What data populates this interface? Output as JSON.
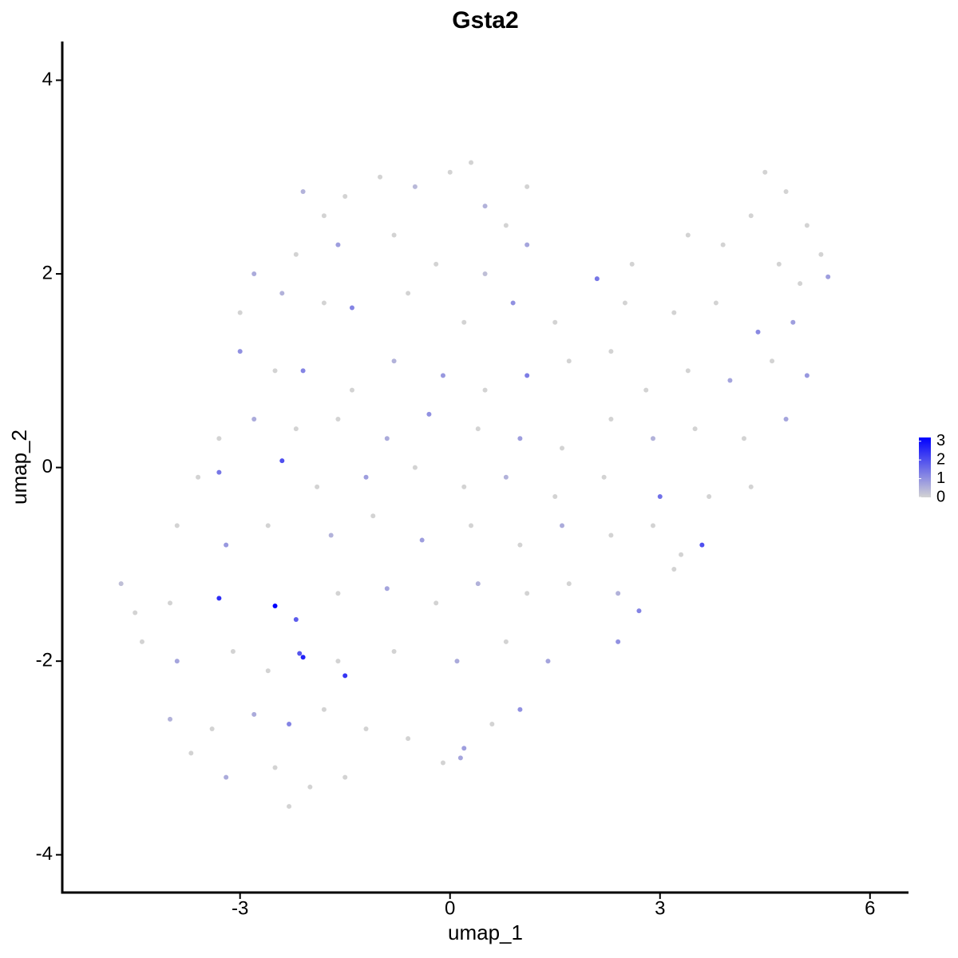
{
  "chart_data": {
    "type": "scatter",
    "title": "Gsta2",
    "xlabel": "umap_1",
    "ylabel": "umap_2",
    "xlim": [
      -5.54,
      6.55
    ],
    "ylim": [
      -4.39,
      4.4
    ],
    "xticks": [
      -3,
      0,
      3,
      6
    ],
    "yticks": [
      -4,
      -2,
      0,
      2,
      4
    ],
    "color_low": "#d3d3d3",
    "color_high": "#0000ff",
    "clim": [
      0,
      3.2
    ],
    "cticks": [
      0,
      1,
      2,
      3
    ],
    "x": [
      -1.5,
      -1.0,
      -0.5,
      0,
      0.3,
      0.5,
      1.1,
      -2.1,
      -1.8,
      0.8,
      4.5,
      4.8,
      4.3,
      5.1,
      5.3,
      5.4,
      3.4,
      2.6,
      3.9,
      -2.8,
      -2.2,
      -1.6,
      -0.8,
      -0.2,
      0.5,
      1.1,
      4.7,
      5.0,
      -3.0,
      -2.4,
      -1.8,
      -1.4,
      -0.6,
      0.2,
      0.9,
      1.5,
      2.1,
      2.5,
      3.2,
      3.8,
      4.4,
      4.9,
      -3.0,
      -2.5,
      -2.1,
      -1.4,
      -0.8,
      -0.1,
      0.5,
      1.1,
      1.7,
      2.3,
      2.8,
      3.4,
      4.0,
      4.6,
      5.1,
      -3.3,
      -2.8,
      -2.2,
      -1.6,
      -0.9,
      -0.3,
      0.4,
      1.0,
      1.6,
      2.3,
      2.9,
      3.5,
      4.2,
      4.8,
      -3.6,
      -3.3,
      -2.4,
      -1.9,
      -1.2,
      -0.5,
      0.2,
      0.8,
      1.5,
      2.2,
      3.0,
      3.7,
      4.3,
      -3.9,
      -3.2,
      -2.6,
      -1.7,
      -1.1,
      -0.4,
      0.3,
      1.0,
      1.6,
      2.3,
      2.9,
      3.6,
      3.3,
      -4.7,
      -4.5,
      -4.0,
      -3.3,
      -2.5,
      -2.2,
      -1.6,
      -0.9,
      -0.2,
      0.4,
      1.1,
      1.7,
      2.4,
      2.7,
      3.2,
      -4.4,
      -3.9,
      -3.1,
      -2.6,
      -2.15,
      -2.1,
      -1.6,
      -1.5,
      -0.8,
      0.1,
      0.8,
      1.4,
      2.4,
      -4.0,
      -3.4,
      -2.8,
      -2.3,
      -1.8,
      -1.2,
      -0.6,
      0.2,
      0.6,
      1.0,
      -3.7,
      -3.2,
      -2.5,
      -2.0,
      -2.3,
      -1.5,
      -0.1,
      0.15
    ],
    "values": [
      2.8,
      3.0,
      2.9,
      3.05,
      3.15,
      2.7,
      2.9,
      2.85,
      2.6,
      2.5,
      3.05,
      2.85,
      2.6,
      2.5,
      2.2,
      1.97,
      2.4,
      2.1,
      2.3,
      2.0,
      2.2,
      2.3,
      2.4,
      2.1,
      2.0,
      2.3,
      2.1,
      1.9,
      1.6,
      1.8,
      1.7,
      1.65,
      1.8,
      1.5,
      1.7,
      1.5,
      1.95,
      1.7,
      1.6,
      1.7,
      1.4,
      1.5,
      1.2,
      1.0,
      1.0,
      0.8,
      1.1,
      0.95,
      0.8,
      0.95,
      1.1,
      1.2,
      0.8,
      1.0,
      0.9,
      1.1,
      0.95,
      0.3,
      0.5,
      0.4,
      0.5,
      0.3,
      0.55,
      0.4,
      0.3,
      0.2,
      0.5,
      0.3,
      0.4,
      0.3,
      0.5,
      -0.1,
      -0.05,
      0.07,
      -0.2,
      -0.1,
      0.0,
      -0.2,
      -0.1,
      -0.3,
      -0.1,
      -0.3,
      -0.3,
      -0.2,
      -0.6,
      -0.8,
      -0.6,
      -0.7,
      -0.5,
      -0.75,
      -0.6,
      -0.8,
      -0.6,
      -0.7,
      -0.6,
      -0.8,
      -0.9,
      -1.2,
      -1.5,
      -1.4,
      -1.35,
      -1.43,
      -1.57,
      -1.3,
      -1.25,
      -1.4,
      -1.2,
      -1.3,
      -1.2,
      -1.3,
      -1.48,
      -1.05,
      -1.8,
      -2.0,
      -1.9,
      -2.1,
      -1.92,
      -1.96,
      -2.0,
      -2.15,
      -1.9,
      -2.0,
      -1.8,
      -2.0,
      -1.8,
      -2.6,
      -2.7,
      -2.55,
      -2.65,
      -2.5,
      -2.7,
      -2.8,
      -2.9,
      -2.65,
      -2.5,
      -2.95,
      -3.2,
      -3.1,
      -3.3,
      -3.5,
      -3.2,
      -3.05,
      -3.0
    ],
    "expression": [
      0,
      0,
      0.4,
      0,
      0,
      0.5,
      0,
      0.5,
      0,
      0,
      0,
      0,
      0,
      0,
      0,
      0.8,
      0,
      0,
      0,
      0.6,
      0,
      0.8,
      0,
      0,
      0.3,
      0.7,
      0,
      0,
      0,
      0.5,
      0,
      1.2,
      0,
      0,
      1.0,
      0,
      1.4,
      0,
      0,
      0,
      1.1,
      0.8,
      1.0,
      0,
      1.2,
      0,
      0.5,
      0.9,
      0,
      1.3,
      0,
      0,
      0,
      0,
      0.7,
      0,
      0.9,
      0,
      0.6,
      0,
      0,
      0.6,
      1.0,
      0,
      0.8,
      0,
      0,
      0.5,
      0,
      0,
      0.7,
      0,
      1.4,
      2.0,
      0,
      0.8,
      0,
      0,
      0.5,
      0,
      0,
      1.5,
      0,
      0,
      0,
      0.9,
      0,
      0.5,
      0,
      0.8,
      0,
      0,
      0.6,
      0,
      0,
      2.0,
      0,
      0.3,
      0,
      0,
      2.5,
      3.2,
      1.8,
      0,
      0.7,
      0,
      0.5,
      0,
      0,
      0.5,
      1.2,
      0,
      0,
      0.7,
      0,
      0,
      1.9,
      2.7,
      0,
      2.4,
      0,
      0.6,
      0,
      0.7,
      1.0,
      0.5,
      0,
      0.6,
      1.2,
      0,
      0,
      0,
      0.8,
      0,
      1.0,
      0,
      0.6,
      0,
      0,
      0,
      0,
      0,
      0.7
    ]
  }
}
